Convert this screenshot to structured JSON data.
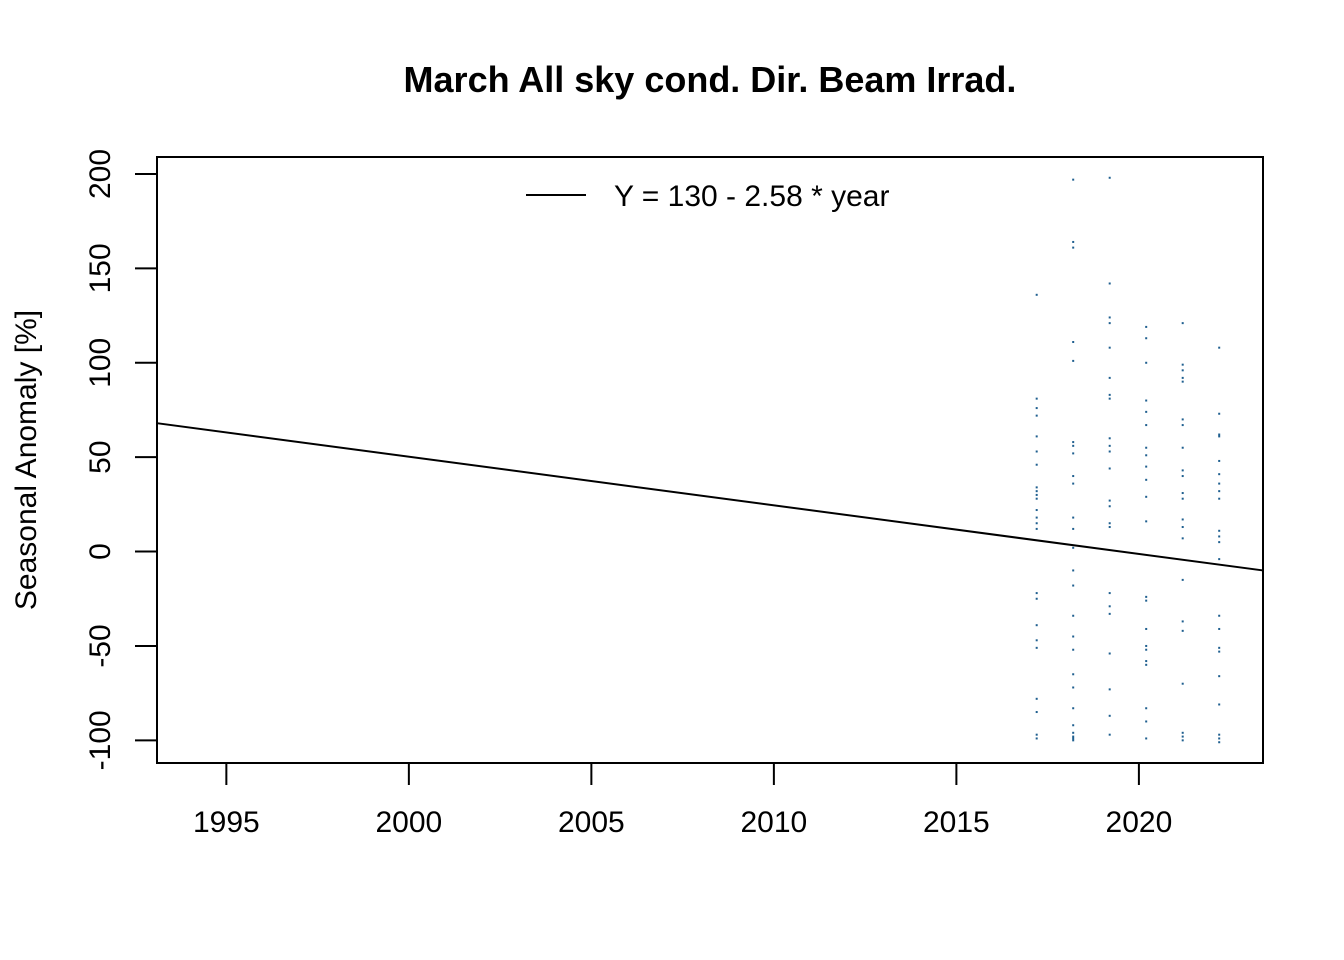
{
  "chart_data": {
    "type": "scatter",
    "title": "March All sky cond. Dir. Beam Irrad.",
    "xlabel": "",
    "ylabel": "Seasonal Anomaly [%]",
    "xlim": [
      1993.1,
      2023.4
    ],
    "ylim": [
      -112,
      209
    ],
    "x_ticks": [
      1995,
      2000,
      2005,
      2010,
      2015,
      2020
    ],
    "y_ticks": [
      -100,
      -50,
      0,
      50,
      100,
      150,
      200
    ],
    "x_tick_labels": [
      "1995",
      "2000",
      "2005",
      "2010",
      "2015",
      "2020"
    ],
    "y_tick_labels": [
      "-100",
      "-50",
      "0",
      "50",
      "100",
      "150",
      "200"
    ],
    "grid": false,
    "legend": {
      "position": "top-center",
      "entries": [
        {
          "label": "Y = 130 - 2.58 * year",
          "style": "line",
          "color": "#000000"
        }
      ]
    },
    "trend_line": {
      "x": [
        1993.1,
        2023.4
      ],
      "y": [
        68,
        -10
      ],
      "color": "#000000"
    },
    "point_color": "#1f5f8f",
    "series": [
      {
        "x": [
          2017.2,
          2017.2,
          2017.2,
          2017.2,
          2017.2,
          2017.2,
          2017.2,
          2017.2,
          2017.2,
          2017.2,
          2017.2,
          2017.2,
          2017.2,
          2017.2,
          2017.2,
          2017.2,
          2017.2,
          2017.2,
          2017.2,
          2017.2,
          2017.2,
          2017.2,
          2017.2,
          2017.2,
          2018.2,
          2018.2,
          2018.2,
          2018.2,
          2018.2,
          2018.2,
          2018.2,
          2018.2,
          2018.2,
          2018.2,
          2018.2,
          2018.2,
          2018.2,
          2018.2,
          2018.2,
          2018.2,
          2018.2,
          2018.2,
          2018.2,
          2018.2,
          2018.2,
          2018.2,
          2018.2,
          2018.2,
          2018.2,
          2018.2,
          2019.2,
          2019.2,
          2019.2,
          2019.2,
          2019.2,
          2019.2,
          2019.2,
          2019.2,
          2019.2,
          2019.2,
          2019.2,
          2019.2,
          2019.2,
          2019.2,
          2019.2,
          2019.2,
          2019.2,
          2019.2,
          2019.2,
          2019.2,
          2019.2,
          2019.2,
          2019.2,
          2020.2,
          2020.2,
          2020.2,
          2020.2,
          2020.2,
          2020.2,
          2020.2,
          2020.2,
          2020.2,
          2020.2,
          2020.2,
          2020.2,
          2020.2,
          2020.2,
          2020.2,
          2020.2,
          2020.2,
          2020.2,
          2020.2,
          2020.2,
          2020.2,
          2020.2,
          2021.2,
          2021.2,
          2021.2,
          2021.2,
          2021.2,
          2021.2,
          2021.2,
          2021.2,
          2021.2,
          2021.2,
          2021.2,
          2021.2,
          2021.2,
          2021.2,
          2021.2,
          2021.2,
          2021.2,
          2021.2,
          2021.2,
          2021.2,
          2021.2,
          2021.2,
          2022.2,
          2022.2,
          2022.2,
          2022.2,
          2022.2,
          2022.2,
          2022.2,
          2022.2,
          2022.2,
          2022.2,
          2022.2,
          2022.2,
          2022.2,
          2022.2,
          2022.2,
          2022.2,
          2022.2,
          2022.2,
          2022.2,
          2022.2,
          2022.2,
          2022.2
        ],
        "y": [
          136,
          81,
          76,
          72,
          61,
          53,
          46,
          34,
          32,
          30,
          28,
          22,
          18,
          15,
          12,
          -22,
          -25,
          -39,
          -47,
          -51,
          -78,
          -85,
          -97,
          -99,
          197,
          164,
          161,
          111,
          101,
          58,
          56,
          52,
          40,
          36,
          18,
          12,
          2,
          -10,
          -18,
          -34,
          -45,
          -52,
          -65,
          -72,
          -83,
          -92,
          -96,
          -98,
          -99,
          -100,
          198,
          142,
          124,
          121,
          108,
          92,
          83,
          81,
          60,
          56,
          53,
          44,
          27,
          24,
          15,
          13,
          -22,
          -29,
          -33,
          -54,
          -73,
          -87,
          -97,
          119,
          113,
          100,
          80,
          74,
          67,
          55,
          51,
          45,
          38,
          29,
          16,
          -24,
          -26,
          -41,
          -50,
          -52,
          -58,
          -60,
          -83,
          -90,
          -99,
          121,
          99,
          96,
          92,
          90,
          70,
          67,
          55,
          43,
          40,
          31,
          28,
          17,
          13,
          7,
          -15,
          -37,
          -42,
          -70,
          -96,
          -98,
          -100,
          108,
          73,
          62,
          61,
          48,
          41,
          36,
          32,
          28,
          11,
          8,
          5,
          -4,
          -34,
          -41,
          -51,
          -53,
          -66,
          -81,
          -97,
          -99,
          -101
        ]
      }
    ]
  }
}
